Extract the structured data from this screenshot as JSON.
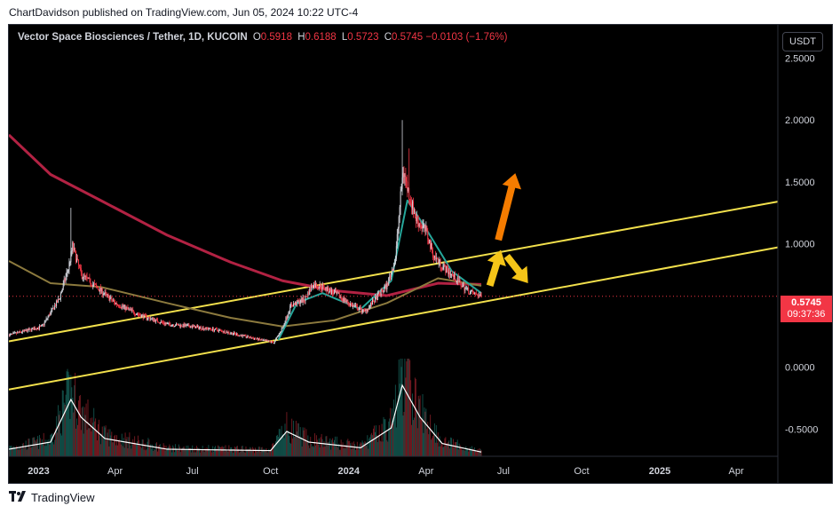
{
  "header": {
    "publisher_line": "ChartDavidson published on TradingView.com, Jun 05, 2024 10:22 UTC-4"
  },
  "legend": {
    "symbol": "Vector Space Biosciences / Tether, 1D, KUCOIN",
    "o_label": "O",
    "o_value": "0.5918",
    "h_label": "H",
    "h_value": "0.6188",
    "l_label": "L",
    "l_value": "0.5723",
    "c_label": "C",
    "c_value": "0.5745",
    "change": "−0.0103 (−1.76%)"
  },
  "toolbar": {
    "currency_label": "USDT"
  },
  "price_tag": {
    "price": "0.5745",
    "countdown": "09:37:36"
  },
  "footer": {
    "brand": "TradingView",
    "logo_icon": "tradingview-logo-icon"
  },
  "colors": {
    "background": "#000000",
    "down": "#f23645",
    "text": "#d1d4dc",
    "channel": "#f2e04c",
    "ma_long": "#b22243",
    "ma_mid": "#8c7a3e",
    "ma_short": "#26a69a",
    "arrow_orange": "#f57c00",
    "arrow_yellow": "#f5c518",
    "volume_line": "#ffffff"
  },
  "chart_data": {
    "type": "candlestick",
    "title": "Vector Space Biosciences / Tether, 1D, KUCOIN",
    "y_ticks": [
      "2.5000",
      "2.0000",
      "1.5000",
      "1.0000",
      "0.5000",
      "0.0000",
      "-0.5000"
    ],
    "y_tick_values": [
      2.5,
      2.0,
      1.5,
      1.0,
      0.5,
      0.0,
      -0.5
    ],
    "ylim": [
      -0.72,
      2.77
    ],
    "x_ticks": [
      "2023",
      "Apr",
      "Jul",
      "Oct",
      "2024",
      "Apr",
      "Jul",
      "Oct",
      "2025",
      "Apr"
    ],
    "x_tick_dates": [
      "2023-01-01",
      "2023-04-01",
      "2023-07-01",
      "2023-10-01",
      "2024-01-01",
      "2024-04-01",
      "2024-07-01",
      "2024-10-01",
      "2025-01-01",
      "2025-04-01"
    ],
    "xlim": [
      "2022-11-27",
      "2025-05-20"
    ],
    "last_price": 0.5745,
    "price_path": [
      [
        "2022-11-27",
        0.26
      ],
      [
        "2022-12-20",
        0.3
      ],
      [
        "2023-01-05",
        0.33
      ],
      [
        "2023-01-25",
        0.55
      ],
      [
        "2023-02-05",
        0.8
      ],
      [
        "2023-02-10",
        0.98
      ],
      [
        "2023-02-20",
        0.75
      ],
      [
        "2023-03-01",
        0.7
      ],
      [
        "2023-03-15",
        0.62
      ],
      [
        "2023-04-01",
        0.52
      ],
      [
        "2023-05-01",
        0.42
      ],
      [
        "2023-06-01",
        0.35
      ],
      [
        "2023-07-01",
        0.33
      ],
      [
        "2023-08-01",
        0.3
      ],
      [
        "2023-09-01",
        0.25
      ],
      [
        "2023-09-20",
        0.22
      ],
      [
        "2023-10-05",
        0.2
      ],
      [
        "2023-10-15",
        0.32
      ],
      [
        "2023-10-25",
        0.5
      ],
      [
        "2023-11-10",
        0.55
      ],
      [
        "2023-11-20",
        0.67
      ],
      [
        "2023-12-01",
        0.65
      ],
      [
        "2023-12-20",
        0.58
      ],
      [
        "2024-01-05",
        0.5
      ],
      [
        "2024-01-20",
        0.45
      ],
      [
        "2024-02-01",
        0.55
      ],
      [
        "2024-02-15",
        0.66
      ],
      [
        "2024-02-25",
        0.88
      ],
      [
        "2024-03-01",
        1.3
      ],
      [
        "2024-03-05",
        1.6
      ],
      [
        "2024-03-10",
        1.45
      ],
      [
        "2024-03-20",
        1.2
      ],
      [
        "2024-04-01",
        1.1
      ],
      [
        "2024-04-10",
        0.9
      ],
      [
        "2024-04-20",
        0.82
      ],
      [
        "2024-05-01",
        0.75
      ],
      [
        "2024-05-15",
        0.65
      ],
      [
        "2024-05-25",
        0.6
      ],
      [
        "2024-06-05",
        0.5745
      ]
    ],
    "highs": [
      [
        "2023-02-08",
        1.29
      ],
      [
        "2024-03-04",
        2.0
      ],
      [
        "2024-03-12",
        1.77
      ]
    ],
    "moving_averages": [
      {
        "points": [
          [
            "2022-11-27",
            1.88
          ],
          [
            "2023-01-15",
            1.56
          ],
          [
            "2023-03-15",
            1.35
          ],
          [
            "2023-06-01",
            1.07
          ],
          [
            "2023-08-15",
            0.85
          ],
          [
            "2023-10-15",
            0.7
          ],
          [
            "2023-12-15",
            0.62
          ],
          [
            "2024-02-15",
            0.58
          ],
          [
            "2024-04-15",
            0.68
          ],
          [
            "2024-06-05",
            0.67
          ]
        ]
      },
      {
        "points": [
          [
            "2022-11-27",
            0.86
          ],
          [
            "2023-01-15",
            0.68
          ],
          [
            "2023-03-15",
            0.65
          ],
          [
            "2023-06-01",
            0.52
          ],
          [
            "2023-08-15",
            0.4
          ],
          [
            "2023-10-15",
            0.33
          ],
          [
            "2023-12-15",
            0.38
          ],
          [
            "2024-02-15",
            0.52
          ],
          [
            "2024-04-15",
            0.72
          ],
          [
            "2024-06-05",
            0.66
          ]
        ]
      },
      {
        "points": [
          [
            "2023-10-10",
            0.22
          ],
          [
            "2023-11-01",
            0.52
          ],
          [
            "2023-12-01",
            0.6
          ],
          [
            "2024-01-15",
            0.47
          ],
          [
            "2024-02-20",
            0.7
          ],
          [
            "2024-03-10",
            1.35
          ],
          [
            "2024-04-01",
            1.12
          ],
          [
            "2024-05-01",
            0.78
          ],
          [
            "2024-06-05",
            0.6
          ]
        ]
      }
    ],
    "channel_lines": [
      {
        "from": [
          "2022-11-27",
          0.21
        ],
        "to": [
          "2025-05-20",
          1.34
        ]
      },
      {
        "from": [
          "2022-11-27",
          -0.18
        ],
        "to": [
          "2025-05-20",
          0.97
        ]
      }
    ],
    "arrows": [
      {
        "direction": "up",
        "color": "orange",
        "from": [
          "2024-06-25",
          1.03
        ],
        "to": [
          "2024-07-15",
          1.57
        ]
      },
      {
        "direction": "up",
        "color": "yellow",
        "from": [
          "2024-06-15",
          0.66
        ],
        "to": [
          "2024-06-28",
          0.95
        ]
      },
      {
        "direction": "down",
        "color": "yellow",
        "from": [
          "2024-07-05",
          0.9
        ],
        "to": [
          "2024-07-30",
          0.68
        ]
      }
    ],
    "volume_profile": [
      [
        "2022-11-27",
        0.1
      ],
      [
        "2023-01-15",
        0.2
      ],
      [
        "2023-02-08",
        0.8
      ],
      [
        "2023-02-20",
        0.55
      ],
      [
        "2023-03-20",
        0.25
      ],
      [
        "2023-06-01",
        0.1
      ],
      [
        "2023-10-01",
        0.08
      ],
      [
        "2023-10-20",
        0.35
      ],
      [
        "2023-11-15",
        0.2
      ],
      [
        "2024-01-15",
        0.12
      ],
      [
        "2024-02-20",
        0.4
      ],
      [
        "2024-03-04",
        1.0
      ],
      [
        "2024-03-25",
        0.55
      ],
      [
        "2024-04-20",
        0.18
      ],
      [
        "2024-06-05",
        0.06
      ]
    ]
  }
}
